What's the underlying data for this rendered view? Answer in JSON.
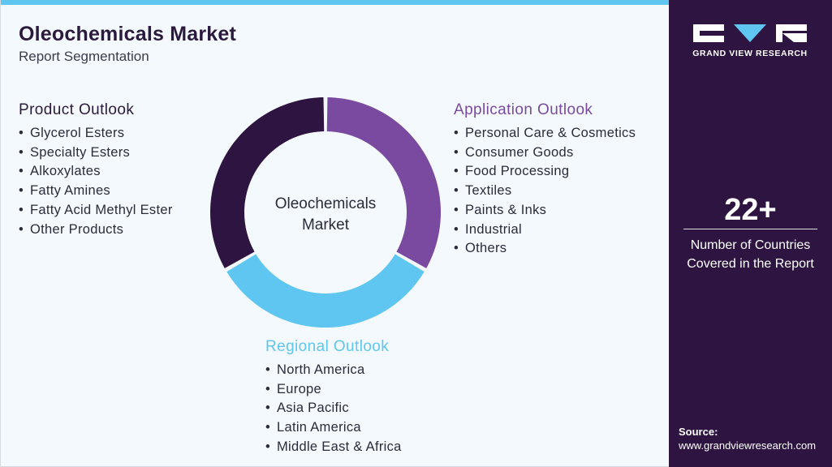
{
  "header": {
    "title": "Oleochemicals Market",
    "subtitle": "Report Segmentation"
  },
  "center_label": [
    "Oleochemicals",
    "Market"
  ],
  "segments": {
    "product": {
      "heading": "Product Outlook",
      "color": "#2a1a3d",
      "items": [
        "Glycerol Esters",
        "Specialty Esters",
        "Alkoxylates",
        "Fatty Amines",
        "Fatty Acid Methyl Ester",
        "Other Products"
      ]
    },
    "application": {
      "heading": "Application Outlook",
      "color": "#7a4aa0",
      "items": [
        "Personal Care & Cosmetics",
        "Consumer Goods",
        "Food Processing",
        "Textiles",
        "Paints & Inks",
        "Industrial",
        "Others"
      ]
    },
    "regional": {
      "heading": "Regional Outlook",
      "color": "#5ec6f0",
      "items": [
        "North America",
        "Europe",
        "Asia Pacific",
        "Latin America",
        "Middle East & Africa"
      ]
    }
  },
  "sidebar": {
    "brand": "GRAND VIEW RESEARCH",
    "stat_value": "22+",
    "stat_label": [
      "Number of Countries",
      "Covered in the Report"
    ],
    "source_label": "Source:",
    "source_url": "www.grandviewresearch.com"
  },
  "colors": {
    "dark_purple": "#2e1541",
    "purple": "#7a4aa0",
    "light_blue": "#5ec6f0"
  }
}
